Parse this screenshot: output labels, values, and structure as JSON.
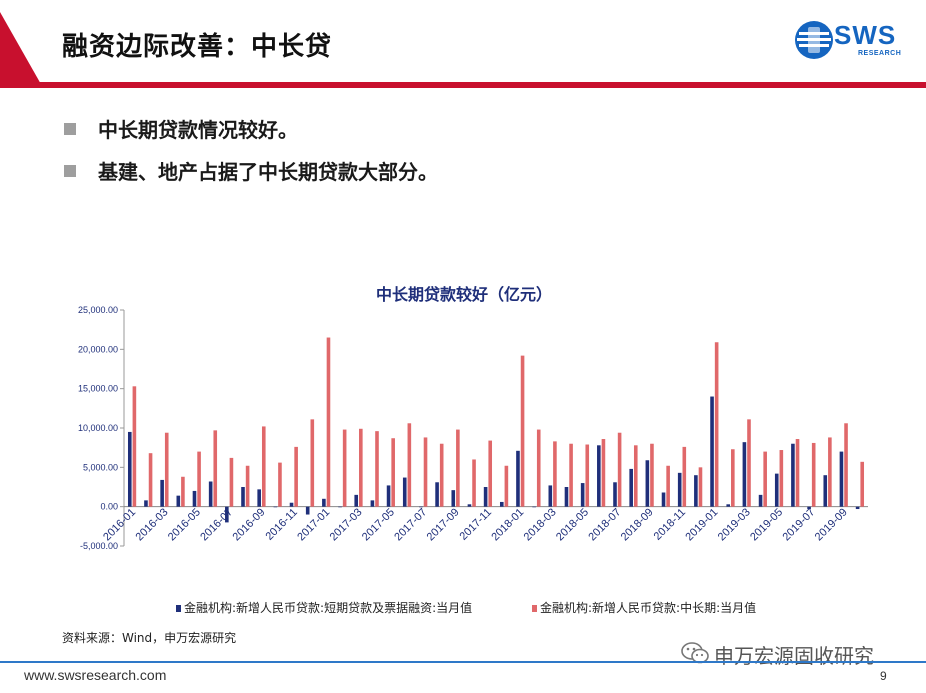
{
  "header": {
    "title": "融资边际改善：中长贷",
    "logo_text": "SWS",
    "logo_sub": "RESEARCH"
  },
  "bullets": [
    "中长期贷款情况较好。",
    "基建、地产占据了中长期贷款大部分。"
  ],
  "source": "资料来源：Wind，申万宏源研究",
  "footer": {
    "url": "www.swsresearch.com",
    "page": "9"
  },
  "watermark": {
    "text": "申万宏源固收研究",
    "icon": "wechat-icon"
  },
  "colors": {
    "accent_red": "#c8102e",
    "footer_blue": "#2e78c8",
    "series_navy": "#1f2f7a",
    "series_red": "#e0686a"
  },
  "chart_data": {
    "type": "bar",
    "title": "中长期贷款较好（亿元）",
    "ylim": [
      -5000,
      25000
    ],
    "yticks": [
      "-5,000.00",
      "0.00",
      "5,000.00",
      "10,000.00",
      "15,000.00",
      "20,000.00",
      "25,000.00"
    ],
    "ytick_values": [
      -5000,
      0,
      5000,
      10000,
      15000,
      20000,
      25000
    ],
    "categories": [
      "2016-01",
      "2016-02",
      "2016-03",
      "2016-04",
      "2016-05",
      "2016-06",
      "2016-07",
      "2016-08",
      "2016-09",
      "2016-10",
      "2016-11",
      "2016-12",
      "2017-01",
      "2017-02",
      "2017-03",
      "2017-04",
      "2017-05",
      "2017-06",
      "2017-07",
      "2017-08",
      "2017-09",
      "2017-10",
      "2017-11",
      "2017-12",
      "2018-01",
      "2018-02",
      "2018-03",
      "2018-04",
      "2018-05",
      "2018-06",
      "2018-07",
      "2018-08",
      "2018-09",
      "2018-10",
      "2018-11",
      "2018-12",
      "2019-01",
      "2019-02",
      "2019-03",
      "2019-04",
      "2019-05",
      "2019-06",
      "2019-07",
      "2019-08",
      "2019-09",
      "2019-10"
    ],
    "xtick_labels": [
      "2016-01",
      "2016-03",
      "2016-05",
      "2016-07",
      "2016-09",
      "2016-11",
      "2017-01",
      "2017-03",
      "2017-05",
      "2017-07",
      "2017-09",
      "2017-11",
      "2018-01",
      "2018-03",
      "2018-05",
      "2018-07",
      "2018-09",
      "2018-11",
      "2019-01",
      "2019-03",
      "2019-05",
      "2019-07",
      "2019-09"
    ],
    "series": [
      {
        "name": "金融机构:新增人民币贷款:短期贷款及票据融资:当月值",
        "color": "#1f2f7a",
        "values": [
          9500,
          800,
          3400,
          1400,
          2000,
          3200,
          -2000,
          2500,
          2200,
          0,
          500,
          -1000,
          1000,
          0,
          1500,
          800,
          2700,
          3700,
          0,
          3100,
          2100,
          300,
          2500,
          600,
          7100,
          0,
          2700,
          2500,
          3000,
          7800,
          3100,
          4800,
          5900,
          1800,
          4300,
          4000,
          14000,
          300,
          8200,
          1500,
          4200,
          8000,
          -300,
          4000,
          7000,
          -300
        ]
      },
      {
        "name": "金融机构:新增人民币贷款:中长期:当月值",
        "color": "#e0686a",
        "values": [
          15300,
          6800,
          9400,
          3800,
          7000,
          9700,
          6200,
          5200,
          10200,
          5600,
          7600,
          11100,
          21500,
          9800,
          9900,
          9600,
          8700,
          10600,
          8800,
          8000,
          9800,
          6000,
          8400,
          5200,
          19200,
          9800,
          8300,
          8000,
          7900,
          8600,
          9400,
          7800,
          8000,
          5200,
          7600,
          5000,
          20900,
          7300,
          11100,
          7000,
          7200,
          8600,
          8100,
          8800,
          10600,
          5700
        ]
      }
    ]
  }
}
